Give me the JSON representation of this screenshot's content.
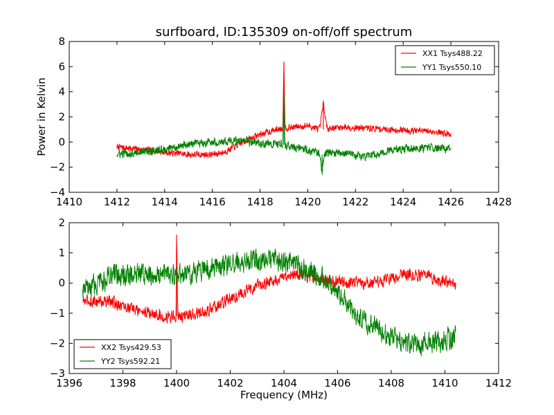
{
  "chart_data": [
    {
      "type": "line",
      "title": "surfboard, ID:135309 on-off/off spectrum",
      "xlabel": "",
      "ylabel": "Power in Kelvin",
      "xlim": [
        1410,
        1428
      ],
      "ylim": [
        -4,
        8
      ],
      "xticks": [
        "1410",
        "1412",
        "1414",
        "1416",
        "1418",
        "1420",
        "1422",
        "1424",
        "1426",
        "1428"
      ],
      "yticks": [
        "−4",
        "−2",
        "0",
        "2",
        "4",
        "6",
        "8"
      ],
      "grid": false,
      "legend_position": "top-right",
      "series": [
        {
          "name": "XX1 Tsys488.22",
          "color": "#ff0000",
          "points": [
            [
              1412.0,
              -0.4
            ],
            [
              1413.0,
              -0.6
            ],
            [
              1414.0,
              -0.8
            ],
            [
              1415.0,
              -1.0
            ],
            [
              1416.0,
              -1.0
            ],
            [
              1416.5,
              -0.8
            ],
            [
              1417.0,
              -0.3
            ],
            [
              1417.5,
              0.2
            ],
            [
              1418.0,
              0.6
            ],
            [
              1418.5,
              0.9
            ],
            [
              1418.95,
              1.1
            ],
            [
              1419.0,
              6.4
            ],
            [
              1419.05,
              1.1
            ],
            [
              1419.5,
              1.2
            ],
            [
              1420.0,
              1.3
            ],
            [
              1420.5,
              1.0
            ],
            [
              1420.65,
              3.1
            ],
            [
              1420.8,
              1.1
            ],
            [
              1421.5,
              1.2
            ],
            [
              1422.5,
              1.1
            ],
            [
              1423.5,
              1.0
            ],
            [
              1424.5,
              0.9
            ],
            [
              1425.5,
              0.8
            ],
            [
              1426.0,
              0.6
            ]
          ],
          "noise": 0.22
        },
        {
          "name": "YY1 Tsys550.10",
          "color": "#008000",
          "points": [
            [
              1412.0,
              -1.0
            ],
            [
              1413.0,
              -0.8
            ],
            [
              1414.0,
              -0.6
            ],
            [
              1415.0,
              -0.2
            ],
            [
              1416.0,
              0.0
            ],
            [
              1416.5,
              0.1
            ],
            [
              1417.0,
              0.1
            ],
            [
              1418.0,
              -0.1
            ],
            [
              1418.95,
              -0.2
            ],
            [
              1419.0,
              3.9
            ],
            [
              1419.05,
              -0.3
            ],
            [
              1420.0,
              -0.6
            ],
            [
              1420.5,
              -1.0
            ],
            [
              1420.6,
              -2.4
            ],
            [
              1420.7,
              -0.8
            ],
            [
              1421.5,
              -0.9
            ],
            [
              1422.5,
              -1.2
            ],
            [
              1423.5,
              -0.6
            ],
            [
              1424.5,
              -0.5
            ],
            [
              1425.5,
              -0.5
            ],
            [
              1426.0,
              -0.6
            ]
          ],
          "noise": 0.28
        }
      ]
    },
    {
      "type": "line",
      "title": "",
      "xlabel": "Frequency (MHz)",
      "ylabel": "",
      "xlim": [
        1396,
        1412
      ],
      "ylim": [
        -3,
        2
      ],
      "xticks": [
        "1396",
        "1398",
        "1400",
        "1402",
        "1404",
        "1406",
        "1408",
        "1410",
        "1412"
      ],
      "yticks": [
        "−3",
        "−2",
        "−1",
        "0",
        "1",
        "2"
      ],
      "grid": false,
      "legend_position": "bottom-left",
      "series": [
        {
          "name": "XX2 Tsys429.53",
          "color": "#ff0000",
          "points": [
            [
              1396.5,
              -0.6
            ],
            [
              1397.5,
              -0.6
            ],
            [
              1398.5,
              -0.9
            ],
            [
              1399.5,
              -1.1
            ],
            [
              1399.98,
              -1.1
            ],
            [
              1400.0,
              1.6
            ],
            [
              1400.05,
              -1.1
            ],
            [
              1401.0,
              -1.0
            ],
            [
              1402.0,
              -0.5
            ],
            [
              1403.0,
              -0.1
            ],
            [
              1404.0,
              0.2
            ],
            [
              1404.5,
              0.3
            ],
            [
              1405.5,
              0.1
            ],
            [
              1406.5,
              0.0
            ],
            [
              1407.5,
              0.0
            ],
            [
              1408.5,
              0.3
            ],
            [
              1409.5,
              0.2
            ],
            [
              1410.4,
              -0.1
            ]
          ],
          "noise": 0.17
        },
        {
          "name": "YY2 Tsys592.21",
          "color": "#008000",
          "points": [
            [
              1396.5,
              -0.3
            ],
            [
              1397.5,
              0.2
            ],
            [
              1398.5,
              0.3
            ],
            [
              1399.5,
              0.3
            ],
            [
              1400.5,
              0.3
            ],
            [
              1401.5,
              0.5
            ],
            [
              1402.5,
              0.7
            ],
            [
              1403.5,
              0.8
            ],
            [
              1404.5,
              0.6
            ],
            [
              1405.5,
              0.1
            ],
            [
              1406.0,
              -0.3
            ],
            [
              1406.5,
              -0.9
            ],
            [
              1407.0,
              -1.3
            ],
            [
              1407.5,
              -1.5
            ],
            [
              1408.0,
              -1.8
            ],
            [
              1408.5,
              -2.0
            ],
            [
              1409.5,
              -2.0
            ],
            [
              1410.4,
              -1.8
            ]
          ],
          "noise": 0.3
        }
      ]
    }
  ]
}
